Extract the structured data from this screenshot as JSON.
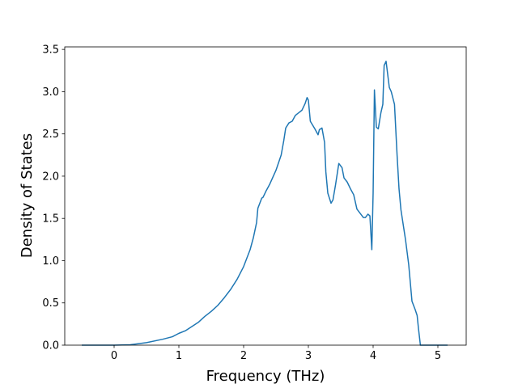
{
  "chart_data": {
    "type": "line",
    "xlabel": "Frequency (THz)",
    "ylabel": "Density of States",
    "x": [
      -0.5,
      0,
      0.25,
      0.5,
      0.75,
      0.9,
      1.0,
      1.1,
      1.2,
      1.3,
      1.4,
      1.5,
      1.6,
      1.7,
      1.8,
      1.9,
      2.0,
      2.1,
      2.15,
      2.2,
      2.22,
      2.28,
      2.3,
      2.35,
      2.4,
      2.5,
      2.58,
      2.62,
      2.65,
      2.7,
      2.75,
      2.8,
      2.85,
      2.9,
      2.95,
      2.98,
      3.0,
      3.03,
      3.1,
      3.15,
      3.17,
      3.21,
      3.25,
      3.27,
      3.3,
      3.35,
      3.38,
      3.42,
      3.47,
      3.52,
      3.55,
      3.6,
      3.65,
      3.7,
      3.75,
      3.8,
      3.85,
      3.88,
      3.92,
      3.95,
      3.98,
      4.0,
      4.02,
      4.05,
      4.08,
      4.12,
      4.15,
      4.17,
      4.2,
      4.25,
      4.28,
      4.33,
      4.37,
      4.4,
      4.43,
      4.5,
      4.55,
      4.6,
      4.65,
      4.68,
      4.7,
      4.73,
      5.15
    ],
    "series": [
      {
        "color": "#1f77b4",
        "values": [
          0,
          0,
          0.005,
          0.03,
          0.07,
          0.1,
          0.14,
          0.17,
          0.22,
          0.27,
          0.34,
          0.4,
          0.47,
          0.56,
          0.66,
          0.78,
          0.93,
          1.13,
          1.27,
          1.45,
          1.62,
          1.74,
          1.75,
          1.83,
          1.9,
          2.07,
          2.25,
          2.42,
          2.57,
          2.63,
          2.65,
          2.72,
          2.75,
          2.78,
          2.86,
          2.93,
          2.9,
          2.65,
          2.56,
          2.49,
          2.55,
          2.57,
          2.4,
          2.05,
          1.8,
          1.68,
          1.72,
          1.9,
          2.15,
          2.1,
          1.98,
          1.93,
          1.85,
          1.78,
          1.61,
          1.56,
          1.51,
          1.51,
          1.55,
          1.53,
          1.13,
          1.8,
          3.02,
          2.58,
          2.56,
          2.75,
          2.85,
          3.31,
          3.36,
          3.05,
          3.0,
          2.85,
          2.25,
          1.85,
          1.6,
          1.25,
          0.95,
          0.52,
          0.42,
          0.35,
          0.2,
          0,
          0
        ]
      }
    ],
    "xlim": [
      -0.7625,
      5.4375
    ],
    "ylim": [
      0,
      3.53
    ],
    "xticks": [
      0,
      1,
      2,
      3,
      4,
      5
    ],
    "yticks": [
      {
        "value": 0,
        "label": "0.0"
      },
      {
        "value": 0.5,
        "label": "0.5"
      },
      {
        "value": 1,
        "label": "1.0"
      },
      {
        "value": 1.5,
        "label": "1.5"
      },
      {
        "value": 2,
        "label": "2.0"
      },
      {
        "value": 2.5,
        "label": "2.5"
      },
      {
        "value": 3,
        "label": "3.0"
      },
      {
        "value": 3.5,
        "label": "3.5"
      }
    ]
  }
}
